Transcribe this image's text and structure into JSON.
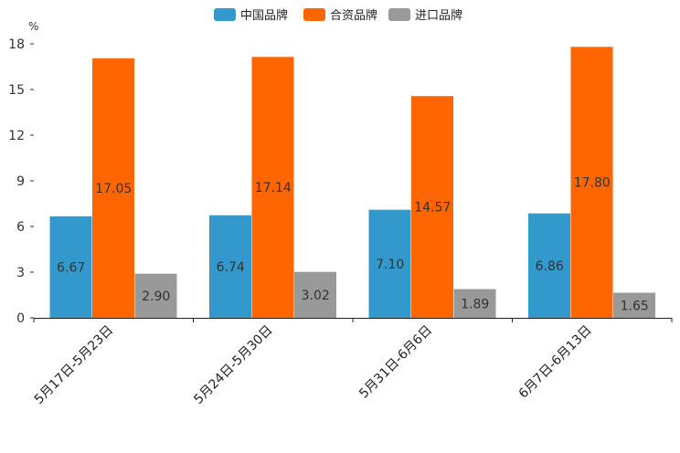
{
  "chart_data": {
    "type": "bar",
    "title": "",
    "xlabel": "",
    "ylabel": "%",
    "ylim": [
      0,
      18
    ],
    "yticks": [
      0,
      3,
      6,
      9,
      12,
      15,
      18
    ],
    "grid": false,
    "legend_position": "top-center",
    "categories": [
      "5月17日-5月23日",
      "5月24日-5月30日",
      "5月31日-6月6日",
      "6月7日-6月13日"
    ],
    "series": [
      {
        "name": "中国品牌",
        "color": "#3399cc",
        "values": [
          6.67,
          6.74,
          7.1,
          6.86
        ]
      },
      {
        "name": "合资品牌",
        "color": "#ff6600",
        "values": [
          17.05,
          17.14,
          14.57,
          17.8
        ]
      },
      {
        "name": "进口品牌",
        "color": "#999999",
        "values": [
          2.9,
          3.02,
          1.89,
          1.65
        ]
      }
    ]
  }
}
